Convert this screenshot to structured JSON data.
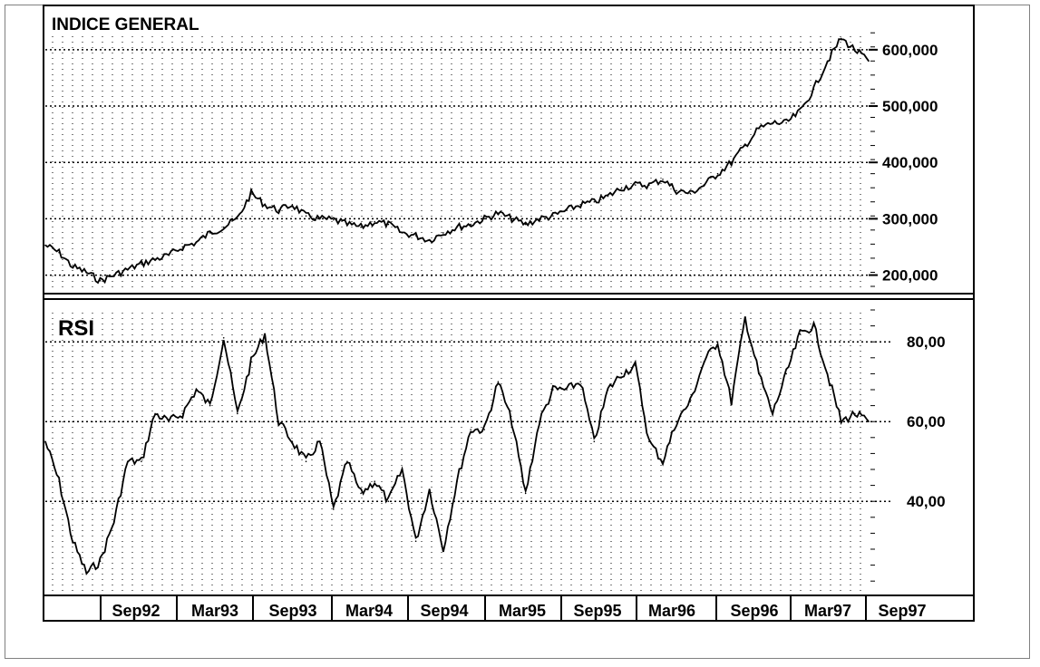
{
  "chart_data": [
    {
      "type": "line",
      "title": "INDICE GENERAL",
      "ylim": [
        180000,
        640000
      ],
      "y_ticks": [
        200000,
        300000,
        400000,
        500000,
        600000
      ],
      "y_tick_labels": [
        "200,000",
        "300,000",
        "400,000",
        "500,000",
        "600,000"
      ],
      "x_tick_labels": [
        "Sep92",
        "Mar93",
        "Sep93",
        "Mar94",
        "Sep94",
        "Mar95",
        "Sep95",
        "Mar96",
        "Sep96",
        "Mar97",
        "Sep97"
      ],
      "grid": true,
      "x": [
        "Jun92",
        "Jul92",
        "Aug92",
        "Sep92",
        "Oct92",
        "Nov92",
        "Dec92",
        "Jan93",
        "Feb93",
        "Mar93",
        "Apr93",
        "May93",
        "Jun93",
        "Jul93",
        "Aug93",
        "Sep93",
        "Oct93",
        "Nov93",
        "Dec93",
        "Jan94",
        "Feb94",
        "Mar94",
        "Apr94",
        "May94",
        "Jun94",
        "Jul94",
        "Aug94",
        "Sep94",
        "Oct94",
        "Nov94",
        "Dec94",
        "Jan95",
        "Feb95",
        "Mar95",
        "Apr95",
        "May95",
        "Jun95",
        "Jul95",
        "Aug95",
        "Sep95",
        "Oct95",
        "Nov95",
        "Dec95",
        "Jan96",
        "Feb96",
        "Mar96",
        "Apr96",
        "May96",
        "Jun96",
        "Jul96",
        "Aug96",
        "Sep96",
        "Oct96",
        "Nov96",
        "Dec96",
        "Jan97",
        "Feb97",
        "Mar97",
        "Apr97",
        "May97",
        "Jun97"
      ],
      "values": [
        253000,
        240000,
        215000,
        205000,
        190000,
        200000,
        210000,
        220000,
        228000,
        235000,
        250000,
        258000,
        275000,
        285000,
        300000,
        345000,
        325000,
        315000,
        325000,
        305000,
        300000,
        298000,
        290000,
        285000,
        295000,
        290000,
        275000,
        270000,
        262000,
        275000,
        285000,
        290000,
        300000,
        310000,
        300000,
        290000,
        300000,
        305000,
        315000,
        325000,
        330000,
        340000,
        355000,
        360000,
        360000,
        370000,
        350000,
        345000,
        360000,
        380000,
        400000,
        430000,
        460000,
        470000,
        470000,
        490000,
        530000,
        580000,
        620000,
        600000,
        580000
      ]
    },
    {
      "type": "line",
      "title": "RSI",
      "ylim": [
        18,
        88
      ],
      "y_ticks": [
        40,
        60,
        80
      ],
      "y_tick_labels": [
        "40,00",
        "60,00",
        "80,00"
      ],
      "grid": true,
      "x": [
        "Jun92",
        "Jul92",
        "Aug92",
        "Sep92",
        "Oct92",
        "Nov92",
        "Dec92",
        "Jan93",
        "Feb93",
        "Mar93",
        "Apr93",
        "May93",
        "Jun93",
        "Jul93",
        "Aug93",
        "Sep93",
        "Oct93",
        "Nov93",
        "Dec93",
        "Jan94",
        "Feb94",
        "Mar94",
        "Apr94",
        "May94",
        "Jun94",
        "Jul94",
        "Aug94",
        "Sep94",
        "Oct94",
        "Nov94",
        "Dec94",
        "Jan95",
        "Feb95",
        "Mar95",
        "Apr95",
        "May95",
        "Jun95",
        "Jul95",
        "Aug95",
        "Sep95",
        "Oct95",
        "Nov95",
        "Dec95",
        "Jan96",
        "Feb96",
        "Mar96",
        "Apr96",
        "May96",
        "Jun96",
        "Jul96",
        "Aug96",
        "Sep96",
        "Oct96",
        "Nov96",
        "Dec96",
        "Jan97",
        "Feb97",
        "Mar97",
        "Apr97",
        "May97",
        "Jun97"
      ],
      "values": [
        55,
        45,
        30,
        22,
        25,
        35,
        50,
        50,
        62,
        60,
        62,
        68,
        64,
        81,
        62,
        75,
        82,
        60,
        55,
        50,
        55,
        38,
        50,
        42,
        45,
        40,
        48,
        30,
        43,
        28,
        45,
        58,
        58,
        70,
        60,
        42,
        60,
        68,
        68,
        70,
        55,
        68,
        72,
        74,
        55,
        50,
        60,
        65,
        75,
        80,
        65,
        86,
        72,
        62,
        72,
        82,
        84,
        72,
        60,
        62,
        60
      ]
    }
  ]
}
